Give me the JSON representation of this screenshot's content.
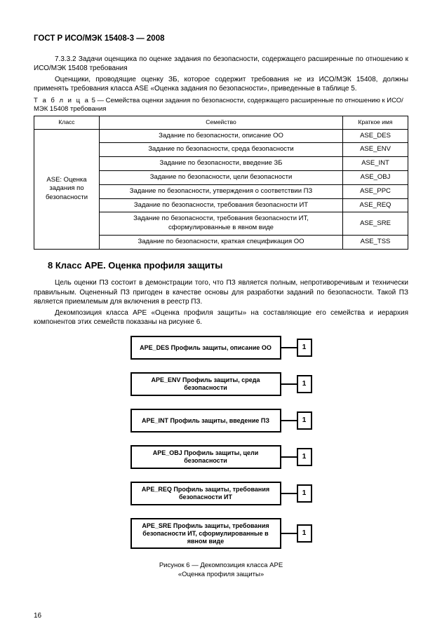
{
  "header": "ГОСТ Р ИСО/МЭК 15408-3 — 2008",
  "para1": "7.3.3.2 Задачи оценщика по оценке задания по безопасности, содержащего расширенные по отношению к ИСО/МЭК 15408 требования",
  "para2": "Оценщики, проводящие оценку ЗБ, которое содержит требования не из ИСО/МЭК 15408, должны применять требования класса ASE «Оценка задания по безопасности», приведенные в таблице 5.",
  "table5": {
    "caption_label": "Т а б л и ц а",
    "caption_num": "5",
    "caption_text": "— Семейства оценки задания по безопасности, содержащего расширенные по отношению к ИСО/МЭК 15408 требования",
    "headers": {
      "class": "Класс",
      "family": "Семейство",
      "short": "Краткое имя"
    },
    "class_cell": "ASE: Оценка задания по безопасности",
    "rows": [
      {
        "family": "Задание по безопасности, описание ОО",
        "short": "ASE_DES"
      },
      {
        "family": "Задание по безопасности, среда безопасности",
        "short": "ASE_ENV"
      },
      {
        "family": "Задание по безопасности, введение ЗБ",
        "short": "ASE_INT"
      },
      {
        "family": "Задание по безопасности, цели безопасности",
        "short": "ASE_OBJ"
      },
      {
        "family": "Задание по безопасности, утверждения о соответствии ПЗ",
        "short": "ASE_PPC"
      },
      {
        "family": "Задание по безопасности, требования безопасности ИТ",
        "short": "ASE_REQ"
      },
      {
        "family": "Задание по безопасности, требования безопасности ИТ, сформулированные в явном виде",
        "short": "ASE_SRE"
      },
      {
        "family": "Задание по безопасности, краткая спецификация ОО",
        "short": "ASE_TSS"
      }
    ]
  },
  "section8_title": "8  Класс APE. Оценка профиля защиты",
  "para3": "Цель оценки ПЗ состоит в демонстрации того, что ПЗ является полным, непротиворечивым и технически правильным. Оцененный ПЗ пригоден в качестве основы для разработки заданий по безопасности. Такой ПЗ является приемлемым для включения в реестр ПЗ.",
  "para4": "Декомпозиция класса APE «Оценка профиля защиты» на составляющие его семейства и иерархия компонентов этих семейств показаны на рисунке 6.",
  "diagram": {
    "items": [
      {
        "label": "APE_DES Профиль защиты, описание ОО",
        "num": "1"
      },
      {
        "label": "APE_ENV Профиль защиты, среда безопасности",
        "num": "1"
      },
      {
        "label": "APE_INT Профиль защиты, введение ПЗ",
        "num": "1"
      },
      {
        "label": "APE_OBJ Профиль защиты, цели безопасности",
        "num": "1"
      },
      {
        "label": "APE_REQ Профиль защиты, требования безопасности ИТ",
        "num": "1"
      },
      {
        "label": "APE_SRE Профиль защиты, требования безопасности ИТ, сформулированные в явном виде",
        "num": "1"
      }
    ]
  },
  "fig_caption_l1": "Рисунок 6 — Декомпозиция класса APE",
  "fig_caption_l2": "«Оценка профиля защиты»",
  "page_number": "16"
}
